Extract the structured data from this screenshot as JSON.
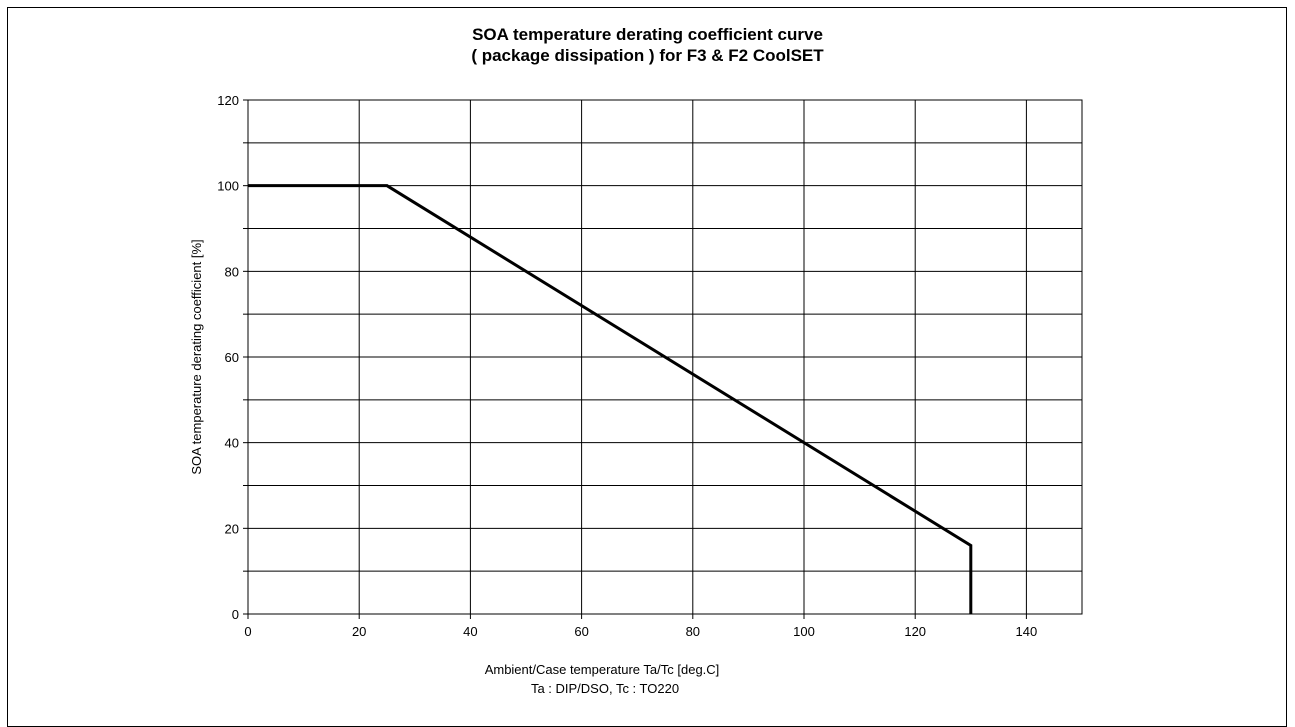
{
  "chart_data": {
    "type": "line",
    "title_lines": [
      "SOA temperature derating coefficient curve",
      "( package dissipation ) for F3 & F2 CoolSET"
    ],
    "xlabel_lines": [
      "Ambient/Case temperature Ta/Tc [deg.C]",
      "Ta : DIP/DSO, Tc : TO220"
    ],
    "ylabel": "SOA temperature derating coefficient [%]",
    "xlim": [
      0,
      150
    ],
    "ylim": [
      0,
      120
    ],
    "x_ticks": [
      0,
      20,
      40,
      60,
      80,
      100,
      120,
      140
    ],
    "y_ticks": [
      0,
      20,
      40,
      60,
      80,
      100,
      120
    ],
    "grid": true,
    "series": [
      {
        "x": [
          0,
          25,
          130,
          130
        ],
        "y": [
          100,
          100,
          16,
          0
        ],
        "color": "#000000"
      }
    ]
  }
}
